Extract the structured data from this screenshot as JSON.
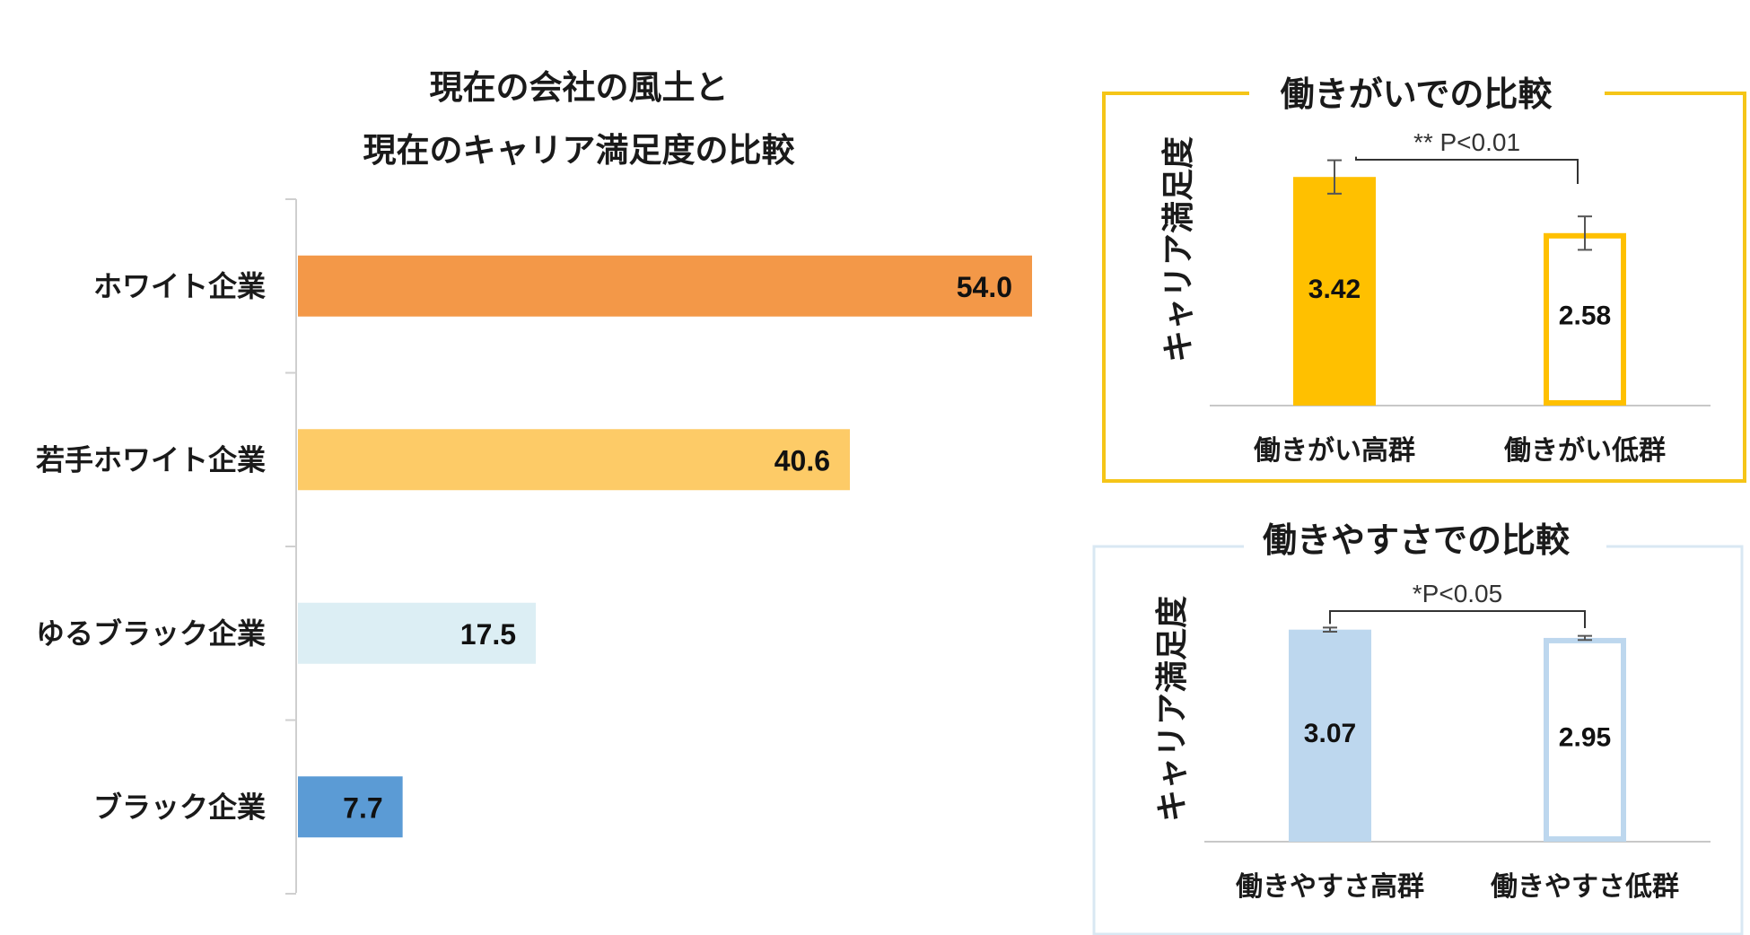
{
  "chart_data": [
    {
      "type": "bar",
      "orientation": "horizontal",
      "title_lines": [
        "現在の会社の風土と",
        "現在のキャリア満足度の比較"
      ],
      "categories": [
        "ホワイト企業",
        "若手ホワイト企業",
        "ゆるブラック企業",
        "ブラック企業"
      ],
      "values": [
        54.0,
        40.6,
        17.5,
        7.7
      ],
      "value_labels": [
        "54.0",
        "40.6",
        "17.5",
        "7.7"
      ],
      "colors": [
        "#F39848",
        "#FDCB67",
        "#DCEEF4",
        "#5B9BD5"
      ],
      "xlim": [
        0,
        54.0
      ]
    },
    {
      "type": "bar",
      "title": "働きがいでの比較",
      "ylabel": "キャリア満足度",
      "categories": [
        "働きがい高群",
        "働きがい低群"
      ],
      "values": [
        3.42,
        2.58
      ],
      "value_labels": [
        "3.42",
        "2.58"
      ],
      "error": [
        0.25,
        0.25
      ],
      "significance": "** P<0.01",
      "ylim": [
        0,
        4.0
      ],
      "accent": "#FFC000",
      "fill_styles": [
        "filled",
        "outline"
      ]
    },
    {
      "type": "bar",
      "title": "働きやすさでの比較",
      "ylabel": "キャリア満足度",
      "categories": [
        "働きやすさ高群",
        "働きやすさ低群"
      ],
      "values": [
        3.07,
        2.95
      ],
      "value_labels": [
        "3.07",
        "2.95"
      ],
      "error": [
        0.03,
        0.03
      ],
      "significance": "*P<0.05",
      "ylim": [
        0,
        3.3
      ],
      "accent": "#BDD7EE",
      "fill_styles": [
        "filled",
        "outline"
      ]
    }
  ]
}
